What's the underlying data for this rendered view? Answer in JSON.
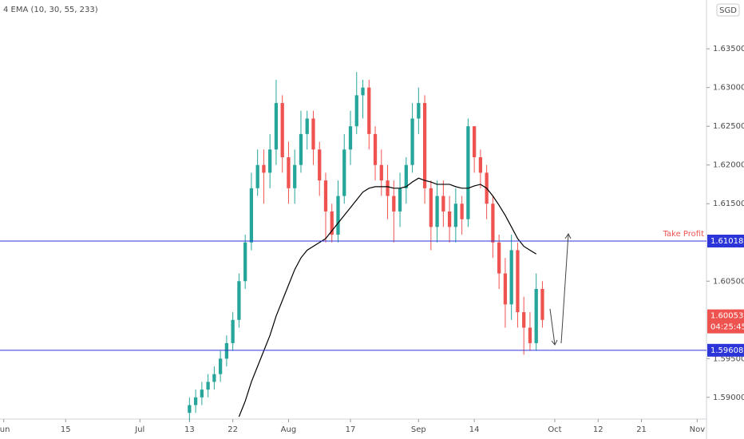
{
  "chart_data": {
    "type": "candlestick",
    "indicator": "4 EMA (10, 30, 55, 233)",
    "currency": "SGD",
    "x": [
      30,
      31,
      32,
      33,
      34,
      35,
      36,
      37,
      38,
      39,
      40,
      41,
      42,
      43,
      44,
      45,
      46,
      47,
      48,
      49,
      50,
      51,
      52,
      53,
      54,
      55,
      56,
      57,
      58,
      59,
      60,
      61,
      62,
      63,
      64,
      65,
      66,
      67,
      68,
      69,
      70,
      71,
      72,
      73,
      74,
      75,
      76,
      77,
      78,
      79,
      80,
      81,
      82,
      83,
      84,
      85,
      86,
      87
    ],
    "open": [
      1.588,
      1.589,
      1.59,
      1.591,
      1.592,
      1.593,
      1.595,
      1.597,
      1.6,
      1.605,
      1.61,
      1.617,
      1.62,
      1.619,
      1.622,
      1.628,
      1.621,
      1.617,
      1.62,
      1.624,
      1.626,
      1.622,
      1.618,
      1.614,
      1.611,
      1.616,
      1.622,
      1.625,
      1.629,
      1.63,
      1.624,
      1.62,
      1.618,
      1.616,
      1.614,
      1.617,
      1.62,
      1.626,
      1.628,
      1.617,
      1.612,
      1.616,
      1.614,
      1.612,
      1.615,
      1.613,
      1.625,
      1.621,
      1.619,
      1.615,
      1.61,
      1.606,
      1.602,
      1.609,
      1.601,
      1.599,
      1.597,
      1.604
    ],
    "high": [
      1.59,
      1.591,
      1.592,
      1.593,
      1.594,
      1.596,
      1.598,
      1.601,
      1.606,
      1.611,
      1.619,
      1.622,
      1.622,
      1.624,
      1.631,
      1.629,
      1.623,
      1.622,
      1.627,
      1.627,
      1.627,
      1.623,
      1.619,
      1.615,
      1.618,
      1.624,
      1.627,
      1.632,
      1.631,
      1.631,
      1.625,
      1.622,
      1.62,
      1.618,
      1.619,
      1.621,
      1.628,
      1.63,
      1.629,
      1.618,
      1.618,
      1.618,
      1.616,
      1.617,
      1.616,
      1.626,
      1.625,
      1.622,
      1.62,
      1.616,
      1.611,
      1.608,
      1.611,
      1.61,
      1.603,
      1.601,
      1.606,
      1.605
    ],
    "low": [
      1.587,
      1.588,
      1.589,
      1.59,
      1.591,
      1.592,
      1.594,
      1.596,
      1.599,
      1.604,
      1.609,
      1.616,
      1.615,
      1.617,
      1.62,
      1.619,
      1.615,
      1.615,
      1.619,
      1.622,
      1.62,
      1.616,
      1.61,
      1.61,
      1.61,
      1.615,
      1.62,
      1.624,
      1.626,
      1.622,
      1.618,
      1.616,
      1.613,
      1.61,
      1.612,
      1.615,
      1.619,
      1.624,
      1.615,
      1.609,
      1.61,
      1.612,
      1.61,
      1.61,
      1.611,
      1.612,
      1.619,
      1.617,
      1.613,
      1.608,
      1.604,
      1.599,
      1.6,
      1.599,
      1.5955,
      1.596,
      1.596,
      1.599
    ],
    "close": [
      1.589,
      1.59,
      1.591,
      1.592,
      1.593,
      1.595,
      1.597,
      1.6,
      1.605,
      1.61,
      1.617,
      1.62,
      1.619,
      1.622,
      1.628,
      1.621,
      1.617,
      1.62,
      1.624,
      1.626,
      1.622,
      1.618,
      1.614,
      1.611,
      1.616,
      1.622,
      1.625,
      1.629,
      1.63,
      1.624,
      1.62,
      1.618,
      1.616,
      1.614,
      1.617,
      1.62,
      1.626,
      1.628,
      1.617,
      1.612,
      1.616,
      1.614,
      1.612,
      1.615,
      1.613,
      1.625,
      1.621,
      1.619,
      1.615,
      1.61,
      1.606,
      1.602,
      1.609,
      1.601,
      1.599,
      1.597,
      1.604,
      1.6
    ],
    "ema": [
      null,
      null,
      null,
      null,
      null,
      null,
      null,
      null,
      1.5875,
      1.5895,
      1.592,
      1.594,
      1.596,
      1.598,
      1.6005,
      1.6025,
      1.6045,
      1.6065,
      1.608,
      1.609,
      1.6095,
      1.61,
      1.6105,
      1.6115,
      1.6125,
      1.6135,
      1.6145,
      1.6155,
      1.6165,
      1.617,
      1.6172,
      1.6172,
      1.6172,
      1.617,
      1.617,
      1.6172,
      1.6178,
      1.6183,
      1.618,
      1.6178,
      1.6175,
      1.6175,
      1.6175,
      1.6172,
      1.617,
      1.617,
      1.6173,
      1.6175,
      1.617,
      1.616,
      1.6148,
      1.6135,
      1.612,
      1.6105,
      1.6095,
      1.609,
      1.6085,
      null
    ],
    "up_color": "#26a69a",
    "down_color": "#ef5350",
    "ema_color": "#000000",
    "xlim": [
      -0.6,
      113.5
    ],
    "xticks": [
      {
        "value": 0,
        "label": "Jun"
      },
      {
        "value": 10,
        "label": "15"
      },
      {
        "value": 22,
        "label": "Jul"
      },
      {
        "value": 30,
        "label": "13"
      },
      {
        "value": 37,
        "label": "22"
      },
      {
        "value": 46,
        "label": "Aug"
      },
      {
        "value": 56,
        "label": "17"
      },
      {
        "value": 67,
        "label": "Sep"
      },
      {
        "value": 76,
        "label": "14"
      },
      {
        "value": 89,
        "label": "Oct"
      },
      {
        "value": 96,
        "label": "12"
      },
      {
        "value": 103,
        "label": "21"
      },
      {
        "value": 112,
        "label": "Nov"
      }
    ],
    "ylim": [
      1.5872,
      1.6413
    ],
    "yticks": [
      {
        "value": 1.59,
        "label": "1.59000"
      },
      {
        "value": 1.595,
        "label": "1.59500"
      },
      {
        "value": 1.605,
        "label": "1.60500"
      },
      {
        "value": 1.615,
        "label": "1.61500"
      },
      {
        "value": 1.62,
        "label": "1.62000"
      },
      {
        "value": 1.625,
        "label": "1.62500"
      },
      {
        "value": 1.63,
        "label": "1.63000"
      },
      {
        "value": 1.635,
        "label": "1.63500"
      }
    ],
    "price_lines": [
      {
        "value": 1.61018,
        "text": "Take Profit",
        "color": "#2b35d8"
      },
      {
        "value": 1.59608,
        "color": "#2b35d8"
      }
    ],
    "last_price": {
      "value": 1.60053,
      "countdown": "04:25:45",
      "color": "#ef5350"
    }
  }
}
